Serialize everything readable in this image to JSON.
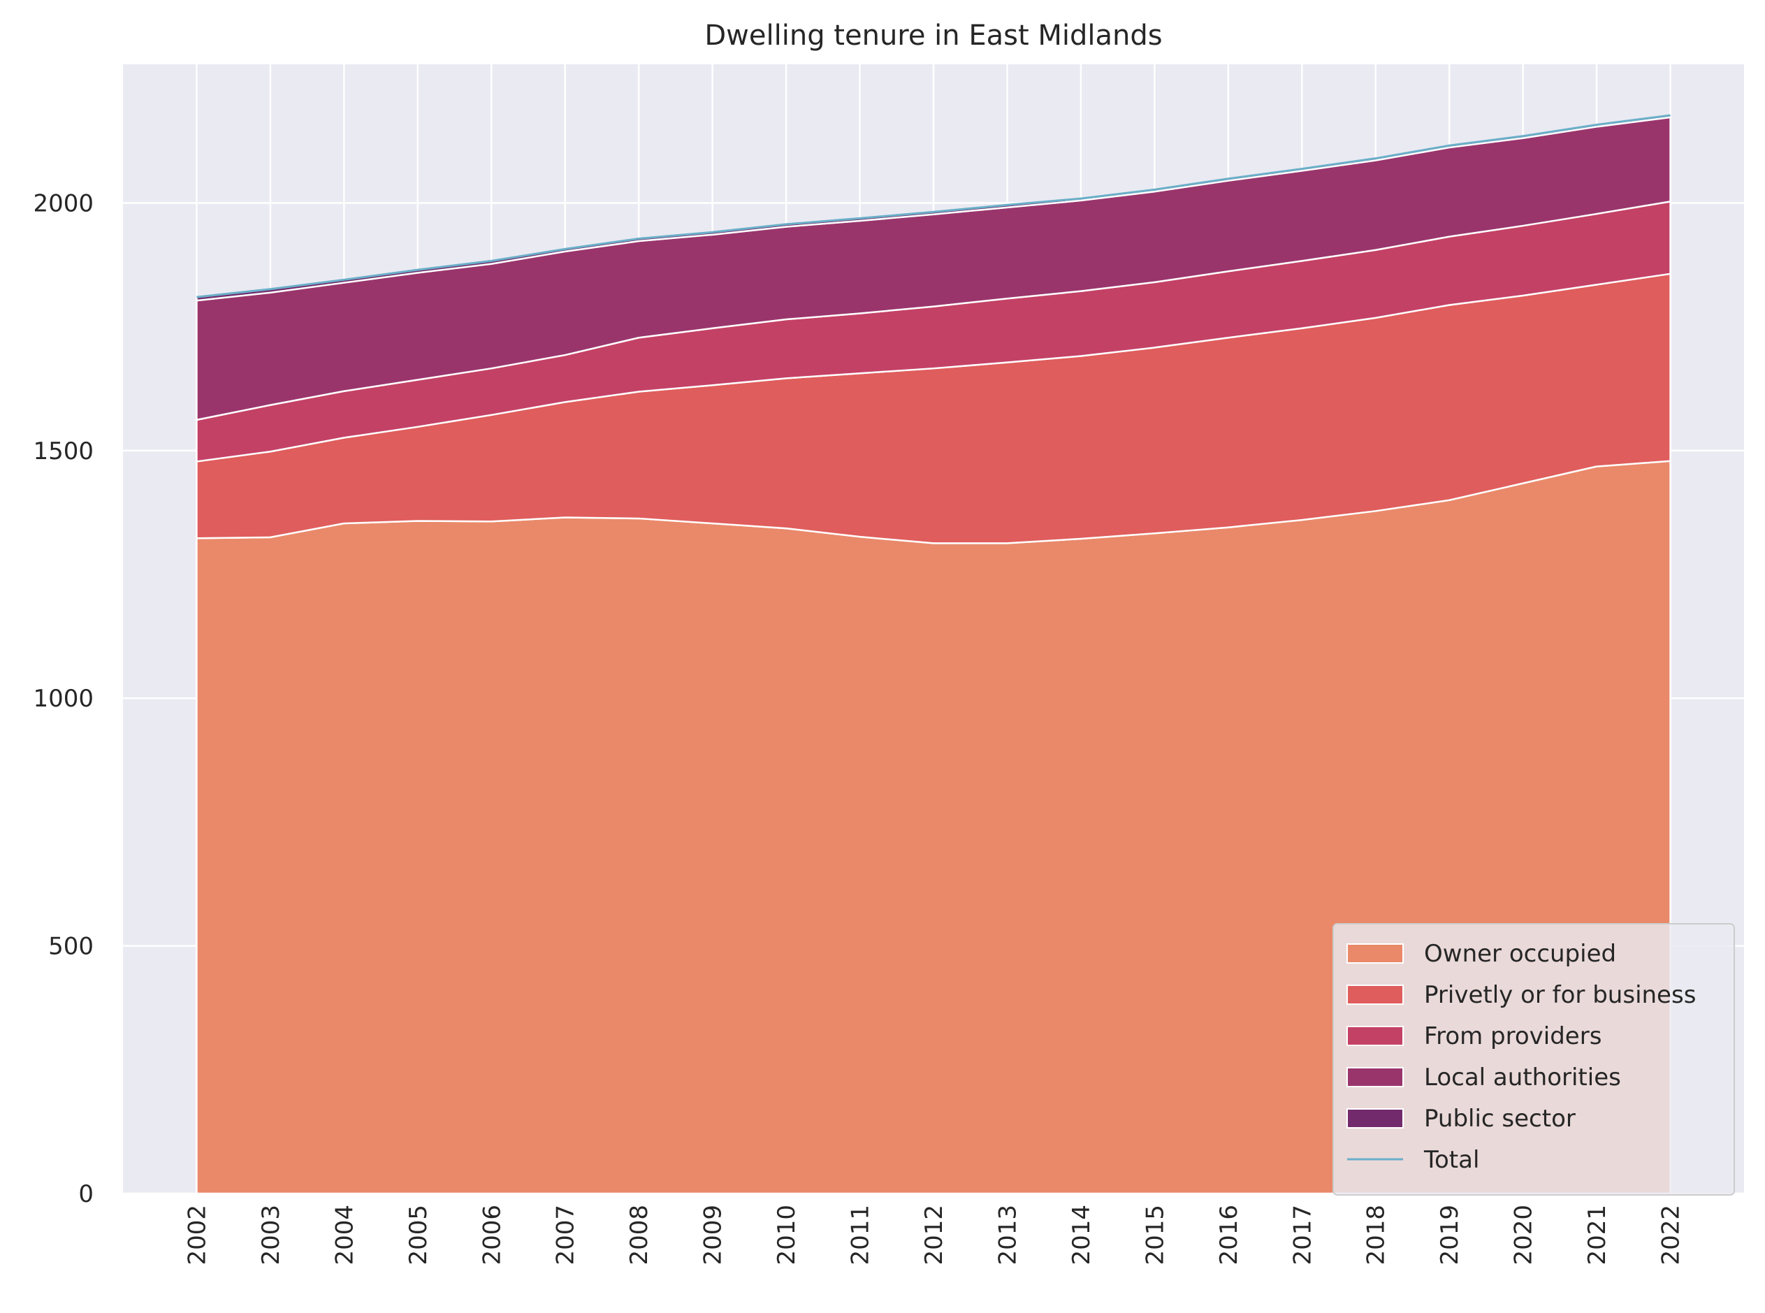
{
  "chart_data": {
    "type": "area",
    "stacked": true,
    "title": "Dwelling tenure in East Midlands",
    "xlabel": "",
    "ylabel": "",
    "x": [
      2002,
      2003,
      2004,
      2005,
      2006,
      2007,
      2008,
      2009,
      2010,
      2011,
      2012,
      2013,
      2014,
      2015,
      2016,
      2017,
      2018,
      2019,
      2020,
      2021,
      2022
    ],
    "x_labels": [
      "2002",
      "2003",
      "2004",
      "2005",
      "2006",
      "2007",
      "2008",
      "2009",
      "2010",
      "2011",
      "2012",
      "2013",
      "2014",
      "2015",
      "2016",
      "2017",
      "2018",
      "2019",
      "2020",
      "2021",
      "2022"
    ],
    "ylim": [
      0,
      2280
    ],
    "yticks": [
      0,
      500,
      1000,
      1500,
      2000
    ],
    "ytick_labels": [
      "0",
      "500",
      "1000",
      "1500",
      "2000"
    ],
    "grid": true,
    "legend_position": "bottom-right",
    "series": [
      {
        "name": "Owner occupied",
        "color": "#e9896a",
        "values": [
          1323,
          1325,
          1353,
          1358,
          1357,
          1365,
          1363,
          1353,
          1343,
          1326,
          1313,
          1313,
          1322,
          1333,
          1345,
          1360,
          1378,
          1400,
          1434,
          1468,
          1479
        ]
      },
      {
        "name": "Privetly or for business",
        "color": "#df5d5c",
        "values": [
          155,
          173,
          173,
          190,
          215,
          233,
          256,
          279,
          303,
          330,
          353,
          365,
          369,
          375,
          383,
          387,
          390,
          394,
          379,
          367,
          378
        ]
      },
      {
        "name": "From providers",
        "color": "#c44166",
        "values": [
          84,
          94,
          94,
          95,
          94,
          95,
          109,
          115,
          119,
          121,
          125,
          129,
          131,
          132,
          134,
          136,
          137,
          138,
          141,
          143,
          146
        ]
      },
      {
        "name": "Local authorities",
        "color": "#9a356c",
        "values": [
          241,
          227,
          219,
          216,
          211,
          209,
          195,
          189,
          187,
          187,
          186,
          184,
          183,
          183,
          183,
          182,
          181,
          180,
          177,
          176,
          170
        ]
      },
      {
        "name": "Public sector",
        "color": "#732a6c",
        "values": [
          7,
          7,
          6,
          6,
          6,
          5,
          5,
          5,
          5,
          5,
          5,
          5,
          4,
          4,
          4,
          4,
          4,
          4,
          4,
          4,
          4
        ]
      }
    ],
    "total": {
      "name": "Total",
      "color": "#6aafc8",
      "values": [
        1810,
        1826,
        1845,
        1865,
        1883,
        1907,
        1928,
        1941,
        1957,
        1969,
        1982,
        1996,
        2009,
        2027,
        2049,
        2069,
        2090,
        2116,
        2135,
        2158,
        2177
      ]
    }
  }
}
